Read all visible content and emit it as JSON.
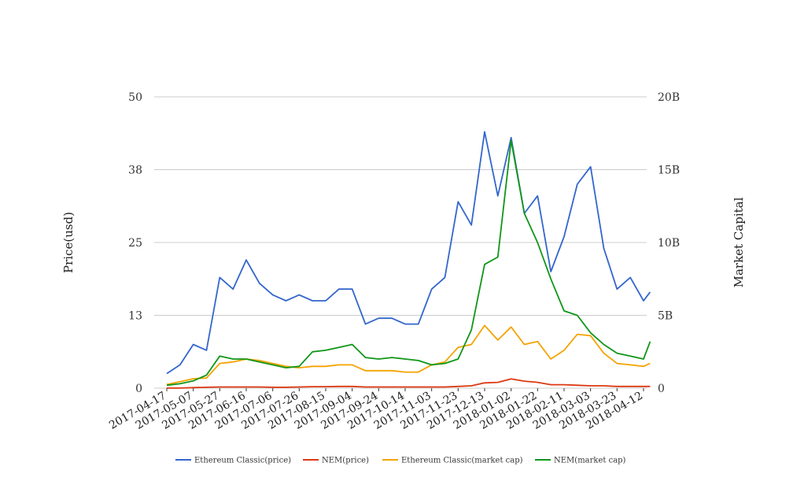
{
  "chart_data": {
    "type": "line",
    "y_left_label": "Price(usd)",
    "y_right_label": "Market Capital",
    "y_left_ticks": [
      "0",
      "13",
      "25",
      "38",
      "50"
    ],
    "y_right_ticks": [
      "0",
      "5B",
      "10B",
      "15B",
      "20B"
    ],
    "ylim_left": [
      0,
      50
    ],
    "ylim_right": [
      0,
      20000000000
    ],
    "grid": true,
    "legend_position": "bottom",
    "x_tick_labels": [
      "2017-04-17",
      "2017-05-07",
      "2017-05-27",
      "2017-06-16",
      "2017-07-06",
      "2017-07-26",
      "2017-08-15",
      "2017-09-04",
      "2017-09-24",
      "2017-10-14",
      "2017-11-03",
      "2017-11-23",
      "2017-12-13",
      "2018-01-02",
      "2018-01-22",
      "2018-02-11",
      "2018-03-03",
      "2018-03-23",
      "2018-04-12"
    ],
    "x": [
      "2017-04-17",
      "2017-04-27",
      "2017-05-07",
      "2017-05-17",
      "2017-05-27",
      "2017-06-06",
      "2017-06-16",
      "2017-06-26",
      "2017-07-06",
      "2017-07-16",
      "2017-07-26",
      "2017-08-05",
      "2017-08-15",
      "2017-08-25",
      "2017-09-04",
      "2017-09-14",
      "2017-09-24",
      "2017-10-04",
      "2017-10-14",
      "2017-10-24",
      "2017-11-03",
      "2017-11-13",
      "2017-11-23",
      "2017-12-03",
      "2017-12-13",
      "2017-12-23",
      "2018-01-02",
      "2018-01-12",
      "2018-01-22",
      "2018-02-01",
      "2018-02-11",
      "2018-02-21",
      "2018-03-03",
      "2018-03-13",
      "2018-03-23",
      "2018-04-02",
      "2018-04-12",
      "2018-04-17"
    ],
    "series": [
      {
        "name": "Ethereum Classic(price)",
        "color": "#3366cc",
        "axis": "left",
        "values": [
          2.5,
          4,
          7.5,
          6.5,
          19,
          17,
          22,
          18,
          16,
          15,
          16,
          15,
          15,
          17,
          17,
          11,
          12,
          12,
          11,
          11,
          17,
          19,
          32,
          28,
          44,
          33,
          43,
          30,
          33,
          20,
          26,
          35,
          38,
          24,
          17,
          19,
          15,
          16.5
        ]
      },
      {
        "name": "NEM(price)",
        "color": "#dc3912",
        "axis": "left",
        "values": [
          0.01,
          0.02,
          0.1,
          0.15,
          0.2,
          0.2,
          0.2,
          0.2,
          0.15,
          0.15,
          0.2,
          0.25,
          0.25,
          0.3,
          0.3,
          0.2,
          0.2,
          0.2,
          0.2,
          0.2,
          0.2,
          0.2,
          0.3,
          0.4,
          0.9,
          1.0,
          1.6,
          1.2,
          1.0,
          0.6,
          0.6,
          0.5,
          0.4,
          0.4,
          0.3,
          0.3,
          0.3,
          0.3
        ]
      },
      {
        "name": "Ethereum Classic(market cap)",
        "color": "#f4a300",
        "axis": "right",
        "values": [
          250000000,
          450000000,
          650000000,
          700000000,
          1700000000,
          1800000000,
          2000000000,
          1900000000,
          1700000000,
          1500000000,
          1400000000,
          1500000000,
          1500000000,
          1600000000,
          1600000000,
          1200000000,
          1200000000,
          1200000000,
          1100000000,
          1100000000,
          1600000000,
          1800000000,
          2800000000,
          3000000000,
          4300000000,
          3300000000,
          4200000000,
          3000000000,
          3200000000,
          2000000000,
          2600000000,
          3700000000,
          3600000000,
          2400000000,
          1700000000,
          1600000000,
          1500000000,
          1700000000
        ]
      },
      {
        "name": "NEM(market cap)",
        "color": "#109618",
        "axis": "right",
        "values": [
          200000000,
          300000000,
          500000000,
          900000000,
          2200000000,
          2000000000,
          2000000000,
          1800000000,
          1600000000,
          1400000000,
          1500000000,
          2500000000,
          2600000000,
          2800000000,
          3000000000,
          2100000000,
          2000000000,
          2100000000,
          2000000000,
          1900000000,
          1600000000,
          1700000000,
          2000000000,
          4000000000,
          8500000000,
          9000000000,
          17000000000,
          12000000000,
          10000000000,
          7500000000,
          5300000000,
          5000000000,
          3800000000,
          3000000000,
          2400000000,
          2200000000,
          2000000000,
          3200000000
        ]
      }
    ]
  }
}
